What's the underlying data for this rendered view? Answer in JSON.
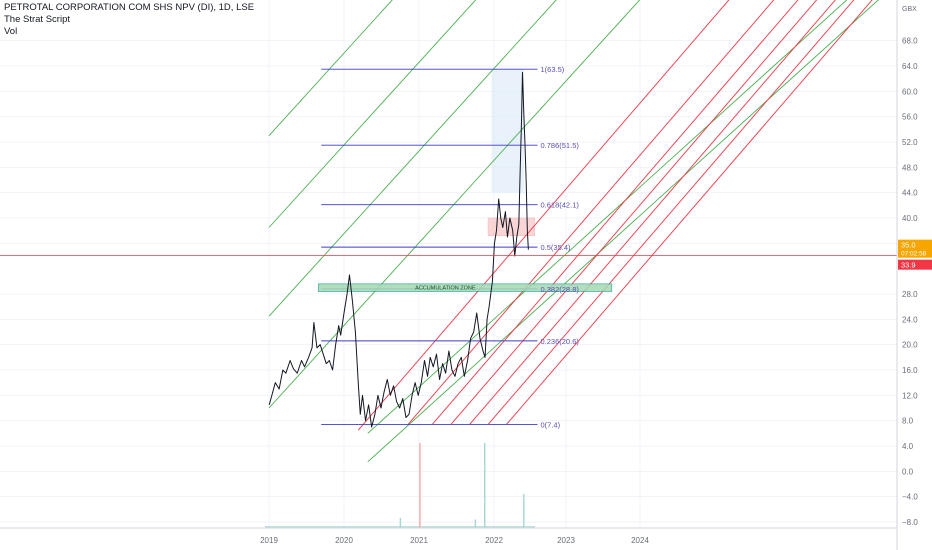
{
  "header": {
    "title": "PETROTAL CORPORATION COM SHS NPV (DI), 1D, LSE",
    "indicator_1": "The Strat Script",
    "indicator_2": "Vol"
  },
  "currency": "GBX",
  "price_tags": [
    {
      "price": "35.0",
      "time": "07:02:58",
      "color": "#f7a600"
    },
    {
      "price": "33.9",
      "color": "#f23645"
    }
  ],
  "chart_data": {
    "type": "line",
    "ylim": [
      -9,
      72
    ],
    "y_ticks": [
      "68.0",
      "64.0",
      "60.0",
      "56.0",
      "52.0",
      "48.0",
      "44.0",
      "40.0",
      "36.0",
      "28.0",
      "24.0",
      "20.0",
      "16.0",
      "12.0",
      "8.0",
      "4.0",
      "0.0",
      "−4.0",
      "−8.0"
    ],
    "x_ticks": [
      "2019",
      "2020",
      "2021",
      "2022",
      "2023",
      "2024"
    ],
    "x_range": [
      "2018-11",
      "2025-02"
    ],
    "price_series": {
      "name": "",
      "points": [
        [
          "2019-01-02",
          10.5
        ],
        [
          "2019-01-15",
          12.0
        ],
        [
          "2019-02-01",
          14.0
        ],
        [
          "2019-02-20",
          13.0
        ],
        [
          "2019-03-10",
          16.0
        ],
        [
          "2019-03-25",
          15.5
        ],
        [
          "2019-04-15",
          17.5
        ],
        [
          "2019-05-01",
          16.2
        ],
        [
          "2019-05-20",
          15.5
        ],
        [
          "2019-06-10",
          17.5
        ],
        [
          "2019-06-25",
          16.5
        ],
        [
          "2019-07-15",
          18.0
        ],
        [
          "2019-08-01",
          19.5
        ],
        [
          "2019-08-10",
          23.5
        ],
        [
          "2019-08-25",
          19.5
        ],
        [
          "2019-09-10",
          20.0
        ],
        [
          "2019-09-25",
          18.5
        ],
        [
          "2019-10-10",
          17.0
        ],
        [
          "2019-10-25",
          17.5
        ],
        [
          "2019-11-10",
          16.0
        ],
        [
          "2019-11-25",
          20.0
        ],
        [
          "2019-12-10",
          23.0
        ],
        [
          "2019-12-20",
          21.5
        ],
        [
          "2020-01-05",
          25.0
        ],
        [
          "2020-01-20",
          28.0
        ],
        [
          "2020-02-01",
          31.0
        ],
        [
          "2020-02-15",
          27.0
        ],
        [
          "2020-03-01",
          22.0
        ],
        [
          "2020-03-15",
          14.0
        ],
        [
          "2020-03-25",
          9.0
        ],
        [
          "2020-04-05",
          12.0
        ],
        [
          "2020-04-20",
          8.0
        ],
        [
          "2020-05-05",
          10.5
        ],
        [
          "2020-05-20",
          7.0
        ],
        [
          "2020-06-05",
          9.0
        ],
        [
          "2020-06-20",
          12.0
        ],
        [
          "2020-07-05",
          10.0
        ],
        [
          "2020-07-20",
          12.5
        ],
        [
          "2020-08-05",
          14.5
        ],
        [
          "2020-08-20",
          12.0
        ],
        [
          "2020-09-05",
          13.5
        ],
        [
          "2020-09-20",
          11.0
        ],
        [
          "2020-10-05",
          10.0
        ],
        [
          "2020-10-20",
          11.5
        ],
        [
          "2020-11-05",
          8.5
        ],
        [
          "2020-11-20",
          9.0
        ],
        [
          "2020-12-05",
          12.0
        ],
        [
          "2020-12-20",
          14.0
        ],
        [
          "2021-01-05",
          12.0
        ],
        [
          "2021-01-20",
          14.0
        ],
        [
          "2021-02-05",
          17.5
        ],
        [
          "2021-02-20",
          15.0
        ],
        [
          "2021-03-05",
          18.0
        ],
        [
          "2021-03-20",
          16.5
        ],
        [
          "2021-04-05",
          18.5
        ],
        [
          "2021-04-20",
          14.5
        ],
        [
          "2021-05-05",
          17.0
        ],
        [
          "2021-05-20",
          15.5
        ],
        [
          "2021-06-05",
          19.0
        ],
        [
          "2021-06-20",
          16.0
        ],
        [
          "2021-07-05",
          15.0
        ],
        [
          "2021-07-20",
          17.0
        ],
        [
          "2021-08-05",
          18.0
        ],
        [
          "2021-08-20",
          15.0
        ],
        [
          "2021-09-05",
          17.5
        ],
        [
          "2021-09-20",
          21.0
        ],
        [
          "2021-10-05",
          22.0
        ],
        [
          "2021-10-20",
          25.0
        ],
        [
          "2021-11-05",
          21.0
        ],
        [
          "2021-11-20",
          19.0
        ],
        [
          "2021-11-30",
          18.0
        ],
        [
          "2021-12-10",
          24.0
        ],
        [
          "2021-12-20",
          26.0
        ],
        [
          "2022-01-05",
          30.0
        ],
        [
          "2022-01-15",
          36.0
        ],
        [
          "2022-01-25",
          38.0
        ],
        [
          "2022-02-05",
          43.0
        ],
        [
          "2022-02-15",
          40.0
        ],
        [
          "2022-02-25",
          38.5
        ],
        [
          "2022-03-10",
          41.0
        ],
        [
          "2022-03-20",
          37.0
        ],
        [
          "2022-04-01",
          40.0
        ],
        [
          "2022-04-15",
          38.0
        ],
        [
          "2022-04-25",
          34.0
        ],
        [
          "2022-05-05",
          37.0
        ],
        [
          "2022-05-15",
          39.0
        ],
        [
          "2022-05-22",
          48.0
        ],
        [
          "2022-05-28",
          55.0
        ],
        [
          "2022-06-02",
          63.0
        ],
        [
          "2022-06-08",
          57.0
        ],
        [
          "2022-06-14",
          52.0
        ],
        [
          "2022-06-20",
          46.0
        ],
        [
          "2022-06-26",
          38.0
        ],
        [
          "2022-07-01",
          35.0
        ]
      ]
    },
    "current_price": 35.0,
    "last_close": 33.9,
    "fib_levels": [
      {
        "ratio": "1",
        "price": 63.5,
        "label": "1(63.5)"
      },
      {
        "ratio": "0.786",
        "price": 51.5,
        "label": "0.786(51.5)"
      },
      {
        "ratio": "0.618",
        "price": 42.1,
        "label": "0.618(42.1)"
      },
      {
        "ratio": "0.5",
        "price": 35.4,
        "label": "0.5(35.4)"
      },
      {
        "ratio": "0.382",
        "price": 28.8,
        "label": "0.382(28.8)"
      },
      {
        "ratio": "0.236",
        "price": 20.6,
        "label": "0.236(20.6)"
      },
      {
        "ratio": "0",
        "price": 7.4,
        "label": "0(7.4)"
      }
    ],
    "fib_range": [
      "2019-09-15",
      "2022-08-15"
    ],
    "accumulation_zone": {
      "label": "ACCUMULATION ZONE",
      "price_low": 28.4,
      "price_high": 29.6,
      "from": "2019-09-01",
      "to": "2023-08-15"
    },
    "highlight_box": {
      "from": "2022-01-01",
      "to": "2022-06-10",
      "price_low": 44.0,
      "price_high": 63.5
    },
    "consolidation_box": {
      "from": "2021-12-15",
      "to": "2022-08-01",
      "price_low": 37.2,
      "price_high": 40.0
    },
    "green_channels": [
      {
        "from": [
          "2019-01-01",
          10.0
        ],
        "slope": 12.9
      },
      {
        "from": [
          "2019-01-01",
          24.5
        ],
        "slope": 12.9
      },
      {
        "from": [
          "2019-01-01",
          38.5
        ],
        "slope": 12.9
      },
      {
        "from": [
          "2019-01-01",
          53.0
        ],
        "slope": 12.9
      },
      {
        "from": [
          "2020-05-01",
          6.0
        ],
        "slope": 10.6
      },
      {
        "from": [
          "2020-05-01",
          1.5
        ],
        "slope": 10.6
      }
    ],
    "red_channels": [
      {
        "from": [
          "2020-03-15",
          6.5
        ],
        "slope": 13.6
      },
      {
        "from": [
          "2020-11-15",
          7.4
        ],
        "slope": 13.6
      },
      {
        "from": [
          "2021-03-15",
          7.4
        ],
        "slope": 13.6
      },
      {
        "from": [
          "2021-06-15",
          7.4
        ],
        "slope": 13.6
      },
      {
        "from": [
          "2021-09-15",
          7.4
        ],
        "slope": 13.6
      },
      {
        "from": [
          "2021-12-15",
          7.4
        ],
        "slope": 13.6
      },
      {
        "from": [
          "2022-03-15",
          7.4
        ],
        "slope": 13.6
      }
    ],
    "volume_spikes": [
      {
        "date": "2021-01-10",
        "value": 1.0,
        "color": "#f7a9a8"
      },
      {
        "date": "2021-11-25",
        "value": 1.0,
        "color": "#a5d6d2"
      },
      {
        "date": "2022-06-05",
        "value": 0.4,
        "color": "#a5d6d2"
      },
      {
        "date": "2020-10-05",
        "value": 0.12,
        "color": "#a5d6d2"
      },
      {
        "date": "2021-10-10",
        "value": 0.1,
        "color": "#a5d6d2"
      }
    ]
  },
  "colors": {
    "price": "#131722",
    "fib_line": "#3c3cc8",
    "fib_text": "#5b4fb5",
    "green_line": "#4caf50",
    "red_line": "#f23645",
    "zone_fill": "#a5d9b3",
    "zone_border": "#26a69a",
    "highlight_fill": "#dbe9f7",
    "consolidation_fill": "#f7c6c4"
  }
}
